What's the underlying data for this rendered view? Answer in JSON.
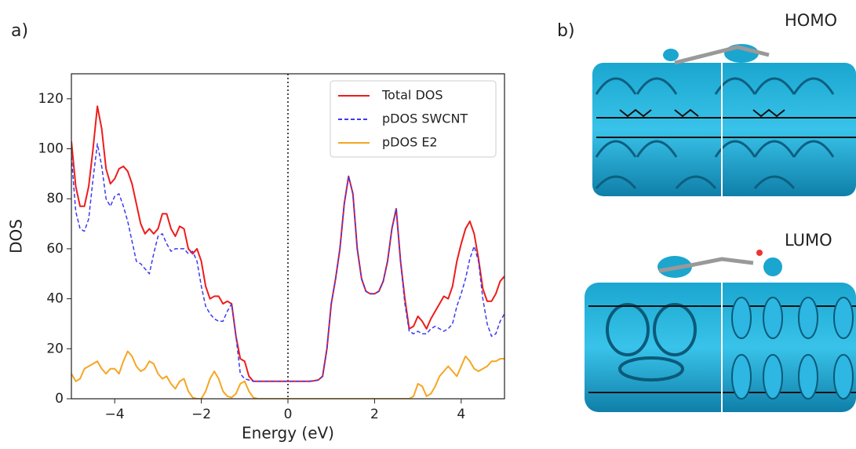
{
  "labels": {
    "a": "a)",
    "b": "b)",
    "homo": "HOMO",
    "lumo": "LUMO"
  },
  "chart_data": {
    "type": "line",
    "xlabel": "Energy (eV)",
    "ylabel": "DOS",
    "xlim": [
      -5,
      5
    ],
    "ylim": [
      0,
      130
    ],
    "xticks": [
      {
        "value": -4,
        "label": "−4"
      },
      {
        "value": -2,
        "label": "−2"
      },
      0,
      2,
      4
    ],
    "yticks": [
      0,
      20,
      40,
      60,
      80,
      100,
      120
    ],
    "vline": 0,
    "legend": "upper right",
    "x": [
      -5,
      -4.9,
      -4.8,
      -4.7,
      -4.6,
      -4.5,
      -4.4,
      -4.3,
      -4.2,
      -4.1,
      -4,
      -3.9,
      -3.8,
      -3.7,
      -3.6,
      -3.5,
      -3.4,
      -3.3,
      -3.2,
      -3.1,
      -3,
      -2.9,
      -2.8,
      -2.7,
      -2.6,
      -2.5,
      -2.4,
      -2.3,
      -2.2,
      -2.1,
      -2,
      -1.9,
      -1.8,
      -1.7,
      -1.6,
      -1.5,
      -1.4,
      -1.3,
      -1.2,
      -1.1,
      -1,
      -0.9,
      -0.8,
      -0.7,
      -0.6,
      -0.5,
      -0.4,
      -0.3,
      -0.2,
      -0.1,
      0,
      0.1,
      0.2,
      0.3,
      0.4,
      0.5,
      0.6,
      0.7,
      0.8,
      0.9,
      1,
      1.1,
      1.2,
      1.3,
      1.4,
      1.5,
      1.6,
      1.7,
      1.8,
      1.9,
      2,
      2.1,
      2.2,
      2.3,
      2.4,
      2.5,
      2.6,
      2.7,
      2.8,
      2.9,
      3,
      3.1,
      3.2,
      3.3,
      3.4,
      3.5,
      3.6,
      3.7,
      3.8,
      3.9,
      4,
      4.1,
      4.2,
      4.3,
      4.4,
      4.5,
      4.6,
      4.7,
      4.8,
      4.9,
      5
    ],
    "series": [
      {
        "name": "Total DOS",
        "color": "#ee1c1c",
        "style": "solid",
        "values": [
          103,
          85,
          77,
          77,
          85,
          100,
          117,
          108,
          92,
          86,
          88,
          92,
          93,
          91,
          86,
          78,
          70,
          66,
          68,
          66,
          68,
          74,
          74,
          68,
          65,
          69,
          68,
          60,
          58,
          60,
          55,
          45,
          40,
          41,
          41,
          38,
          39,
          38,
          25,
          16,
          15,
          9,
          7,
          7,
          7,
          7,
          7,
          7,
          7,
          7,
          7,
          7,
          7,
          7,
          7,
          7,
          7.2,
          7.5,
          9,
          20,
          38,
          48,
          60,
          78,
          89,
          82,
          60,
          48,
          43,
          42,
          42,
          43,
          47,
          55,
          68,
          76,
          55,
          40,
          28,
          29,
          33,
          31,
          28,
          32,
          35,
          38,
          41,
          40,
          45,
          55,
          62,
          68,
          71,
          66,
          56,
          44,
          39,
          39,
          42,
          47,
          49
        ]
      },
      {
        "name": "pDOS SWCNT",
        "color": "#3b3bf0",
        "style": "dashed",
        "values": [
          97,
          75,
          68,
          67,
          72,
          88,
          102,
          93,
          80,
          77,
          81,
          82,
          77,
          71,
          63,
          55,
          54,
          52,
          50,
          58,
          65,
          66,
          62,
          59,
          60,
          60,
          60,
          58,
          59,
          55,
          45,
          37,
          34,
          32,
          31,
          31,
          35,
          38,
          25,
          10,
          8,
          7.5,
          7,
          7,
          7,
          7,
          7,
          7,
          7,
          7,
          7,
          7,
          7,
          7,
          7,
          7,
          7.2,
          7.5,
          9,
          20,
          38,
          48,
          60,
          78,
          89,
          82,
          60,
          48,
          43,
          42,
          42,
          43,
          47,
          55,
          68,
          76,
          55,
          38,
          27,
          26,
          27,
          26,
          26,
          28,
          29,
          28,
          27,
          28,
          30,
          37,
          42,
          48,
          56,
          61,
          55,
          40,
          30,
          25,
          26,
          31,
          34
        ]
      },
      {
        "name": "pDOS E2",
        "color": "#f5a623",
        "style": "solid",
        "values": [
          10,
          7,
          8,
          12,
          13,
          14,
          15,
          12,
          10,
          12,
          12,
          10,
          15,
          19,
          17,
          13,
          11,
          12,
          15,
          14,
          10,
          8,
          9,
          6,
          4,
          7,
          8,
          3,
          0.5,
          0,
          0,
          3,
          8,
          11,
          8,
          3,
          1,
          0.5,
          2,
          6,
          7,
          3,
          0.5,
          0,
          0,
          0,
          0,
          0,
          0,
          0,
          0,
          0,
          0,
          0,
          0,
          0,
          0,
          0,
          0,
          0,
          0,
          0,
          0,
          0,
          0,
          0,
          0,
          0,
          0,
          0,
          0,
          0,
          0,
          0,
          0,
          0,
          0,
          0,
          0,
          1,
          6,
          5,
          1,
          2,
          5,
          9,
          11,
          13,
          11,
          9,
          13,
          17,
          15,
          12,
          11,
          12,
          13,
          15,
          15,
          16,
          16
        ]
      }
    ]
  }
}
